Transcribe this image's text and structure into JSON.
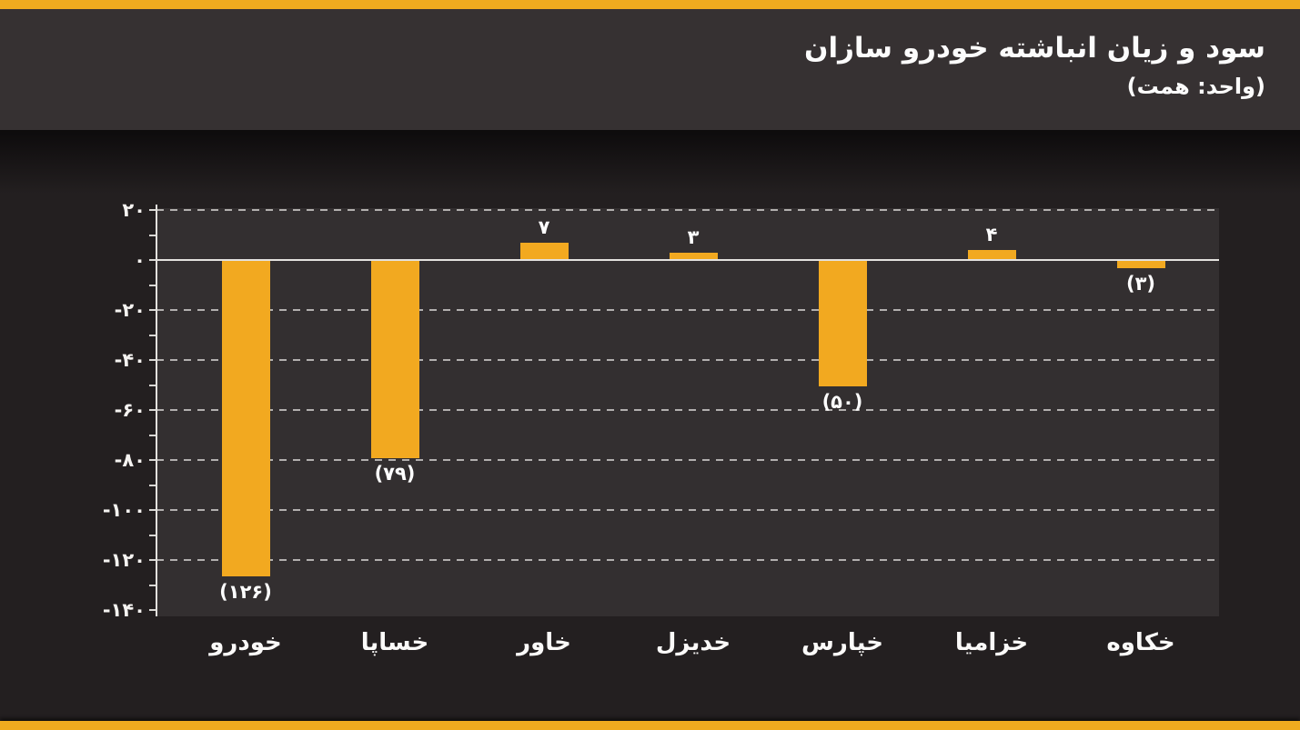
{
  "header": {
    "title": "سود و زیان انباشته خودرو سازان",
    "subtitle": "(واحد: همت)"
  },
  "colors": {
    "accent": "#EFAB1F",
    "bar": "#F2A920",
    "page_bg": "#231F20",
    "header_bg": "#363132",
    "plot_bg": "#332F30",
    "axis_line": "#E3E1DE",
    "gridline": "#B3B0AE",
    "text": "#FBFAF9"
  },
  "chart_data": {
    "type": "bar",
    "title": "سود و زیان انباشته خودرو سازان",
    "unit_label": "(واحد: همت)",
    "unit": "همت",
    "categories": [
      "خودرو",
      "خساپا",
      "خاور",
      "خدیزل",
      "خپارس",
      "خزامیا",
      "خکاوه"
    ],
    "values": [
      -126,
      -79,
      7,
      3,
      -50,
      4,
      -3
    ],
    "value_labels": [
      "(۱۲۶)",
      "(۷۹)",
      "۷",
      "۳",
      "(۵۰)",
      "۴",
      "(۳)"
    ],
    "y_ticks": [
      20,
      0,
      -20,
      -40,
      -60,
      -80,
      -100,
      -120,
      -140
    ],
    "y_tick_labels": [
      "۲۰",
      "۰",
      "-۲۰",
      "-۴۰",
      "-۶۰",
      "-۸۰",
      "-۱۰۰",
      "-۱۲۰",
      "-۱۴۰"
    ],
    "ylim": [
      -140,
      20
    ],
    "minor_tick_step": 10,
    "grid": "dashed horizontal, solid zero line",
    "legend": "none",
    "bar_color": "#F2A920",
    "negative_convention": "parentheses"
  }
}
